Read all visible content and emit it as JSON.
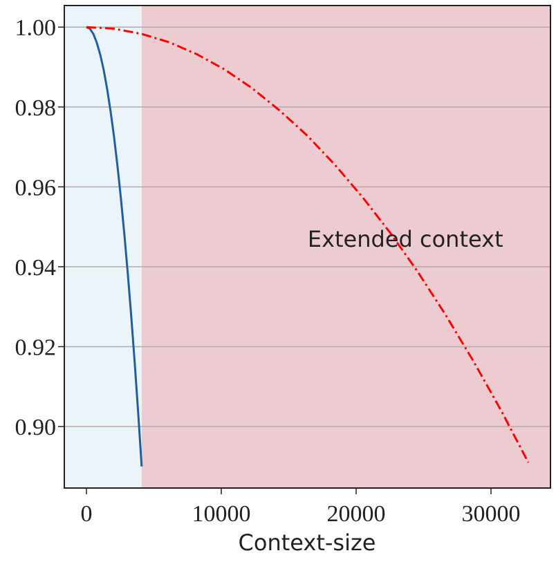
{
  "chart_data": {
    "type": "line",
    "xlabel": "Context-size",
    "annotation": "Extended context",
    "split_x": 4096,
    "region_colors": [
      "#ebf4f9",
      "#edccd1"
    ],
    "xlim": [
      -1640,
      34410
    ],
    "ylim": [
      0.8846,
      1.0054
    ],
    "xticks": [
      0,
      10000,
      20000,
      30000
    ],
    "yticks": [
      {
        "value": 0.9,
        "label": "0.90"
      },
      {
        "value": 0.92,
        "label": "0.92"
      },
      {
        "value": 0.94,
        "label": "0.94"
      },
      {
        "value": 0.96,
        "label": "0.96"
      },
      {
        "value": 0.98,
        "label": "0.98"
      },
      {
        "value": 1.0,
        "label": "1.00"
      }
    ],
    "grid": true,
    "series": [
      {
        "color": "#1f5fa0",
        "dash": "solid",
        "x": [
          0,
          256,
          512,
          768,
          1024,
          1280,
          1536,
          1792,
          2048,
          2304,
          2560,
          2816,
          3072,
          3328,
          3584,
          3840,
          4096
        ],
        "values": [
          1.0,
          0.9996,
          0.9983,
          0.9961,
          0.9931,
          0.9893,
          0.9845,
          0.9789,
          0.9725,
          0.9652,
          0.957,
          0.948,
          0.9381,
          0.9274,
          0.9158,
          0.9033,
          0.89
        ]
      },
      {
        "color": "#ff0000",
        "dash": "dashdot",
        "x": [
          0,
          2048,
          4096,
          6144,
          8192,
          10240,
          12288,
          14336,
          16384,
          18432,
          20480,
          22528,
          24576,
          26624,
          28672,
          30720,
          32768
        ],
        "values": [
          1.0,
          0.9996,
          0.9983,
          0.9962,
          0.9932,
          0.9894,
          0.9847,
          0.9791,
          0.9728,
          0.9655,
          0.9574,
          0.9485,
          0.9387,
          0.928,
          0.9165,
          0.9042,
          0.891
        ]
      }
    ]
  }
}
